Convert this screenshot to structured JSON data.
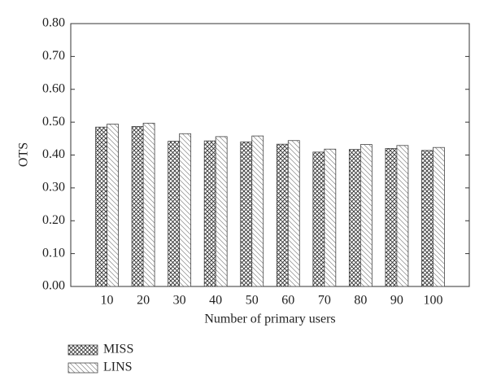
{
  "chart_data": {
    "type": "bar",
    "x_label": "Number of primary users",
    "y_label": "OTS",
    "x": [
      10,
      20,
      30,
      40,
      50,
      60,
      70,
      80,
      90,
      100
    ],
    "xlim": [
      0,
      110
    ],
    "series": [
      {
        "name": "MISS",
        "hatch": "cross",
        "values": [
          0.485,
          0.487,
          0.442,
          0.443,
          0.44,
          0.433,
          0.409,
          0.417,
          0.42,
          0.414
        ]
      },
      {
        "name": "LINS",
        "hatch": "diagonal",
        "values": [
          0.494,
          0.497,
          0.465,
          0.456,
          0.458,
          0.444,
          0.418,
          0.432,
          0.429,
          0.423
        ]
      }
    ],
    "ylim": [
      0,
      0.8
    ],
    "yticks": [
      {
        "value": 0,
        "label": "0.00"
      },
      {
        "value": 0.1,
        "label": "0.10"
      },
      {
        "value": 0.2,
        "label": "0.20"
      },
      {
        "value": 0.3,
        "label": "0.30"
      },
      {
        "value": 0.4,
        "label": "0.40"
      },
      {
        "value": 0.5,
        "label": "0.50"
      },
      {
        "value": 0.6,
        "label": "0.60"
      },
      {
        "value": 0.7,
        "label": "0.70"
      },
      {
        "value": 0.8,
        "label": "0.80"
      }
    ],
    "legend": "bottom-left"
  }
}
